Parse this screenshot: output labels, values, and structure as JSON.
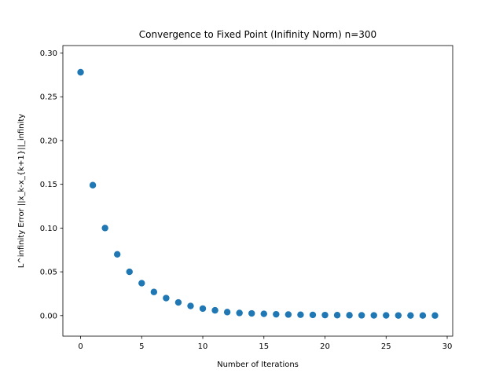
{
  "chart_data": {
    "type": "scatter",
    "title": "Convergence to Fixed Point (Inifinity Norm) n=300",
    "xlabel": "Number of Iterations",
    "ylabel": "L^infinity Error ||x_k-x_{k+1}||_infinity",
    "xlim": [
      -1.45,
      30.45
    ],
    "ylim": [
      -0.0235,
      0.3085
    ],
    "xticks": [
      0,
      5,
      10,
      15,
      20,
      25,
      30
    ],
    "yticks": [
      0.0,
      0.05,
      0.1,
      0.15,
      0.2,
      0.25,
      0.3
    ],
    "xtick_labels": [
      "0",
      "5",
      "10",
      "15",
      "20",
      "25",
      "30"
    ],
    "ytick_labels": [
      "0.00",
      "0.05",
      "0.10",
      "0.15",
      "0.20",
      "0.25",
      "0.30"
    ],
    "grid": false,
    "marker_color": "#1f77b4",
    "series": [
      {
        "x": [
          0,
          1,
          2,
          3,
          4,
          5,
          6,
          7,
          8,
          9,
          10,
          11,
          12,
          13,
          14,
          15,
          16,
          17,
          18,
          19,
          20,
          21,
          22,
          23,
          24,
          25,
          26,
          27,
          28,
          29
        ],
        "y": [
          0.278,
          0.149,
          0.1,
          0.07,
          0.05,
          0.037,
          0.027,
          0.02,
          0.015,
          0.011,
          0.008,
          0.006,
          0.004,
          0.003,
          0.0025,
          0.002,
          0.0015,
          0.0012,
          0.001,
          0.0008,
          0.0006,
          0.0005,
          0.0004,
          0.0003,
          0.00025,
          0.0002,
          0.00015,
          0.00012,
          0.0001,
          8e-05
        ]
      }
    ]
  }
}
